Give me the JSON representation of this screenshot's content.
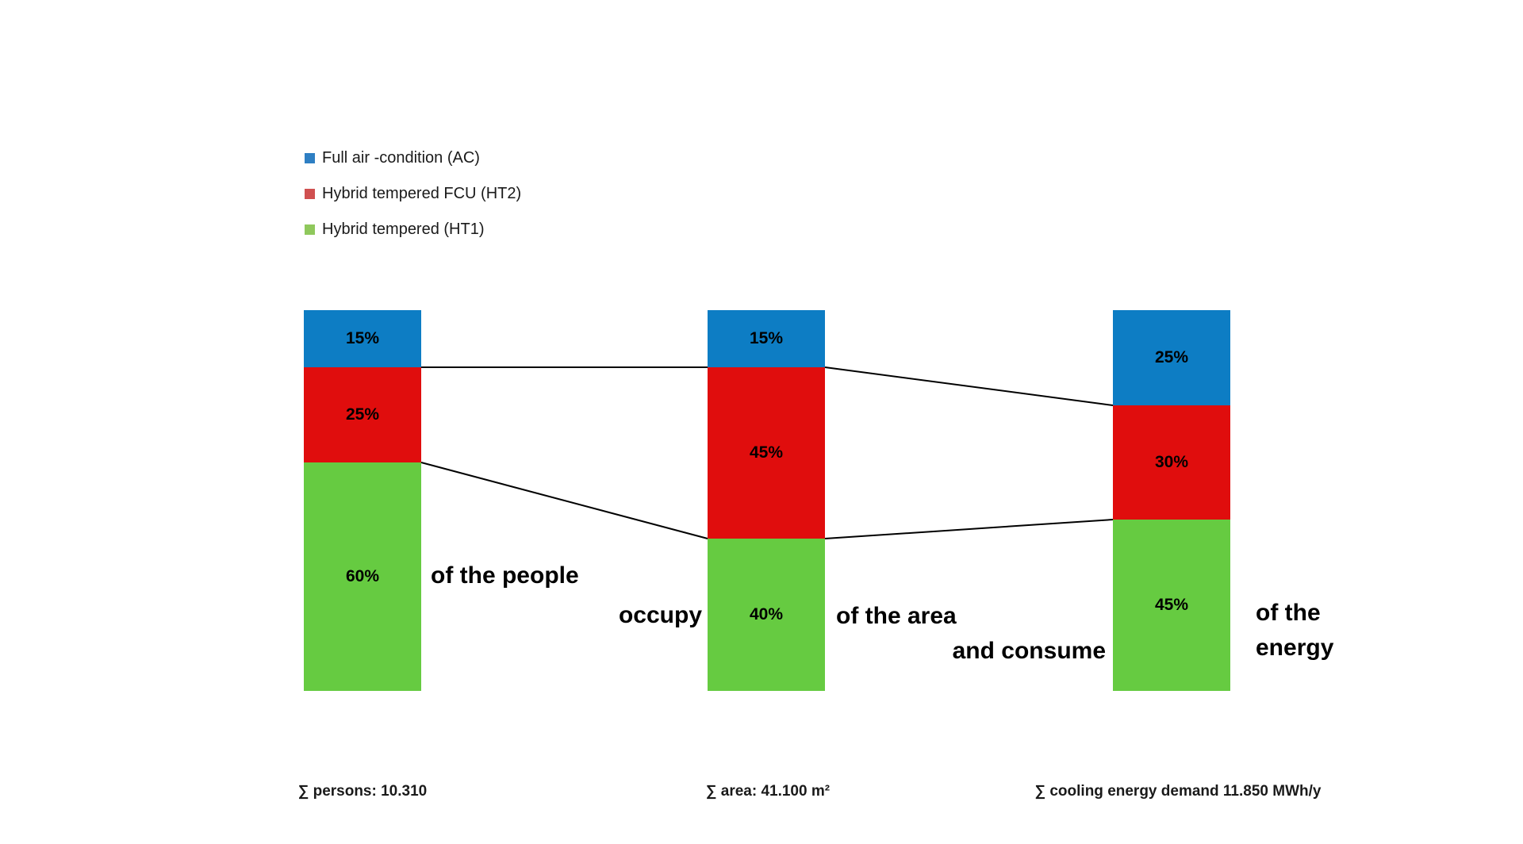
{
  "legend": {
    "items": [
      {
        "label": "Full air -condition (AC)",
        "color": "#2e7fc3"
      },
      {
        "label": "Hybrid tempered FCU (HT2)",
        "color": "#d05050"
      },
      {
        "label": "Hybrid tempered (HT1)",
        "color": "#8fc85c"
      }
    ]
  },
  "chart_data": {
    "type": "bar",
    "subtype": "100%-stacked-columns-with-connector-lines",
    "categories": [
      "people",
      "area",
      "energy"
    ],
    "series": [
      {
        "name": "Full air -condition (AC)",
        "color": "#0d7dc4",
        "values": [
          15,
          15,
          25
        ]
      },
      {
        "name": "Hybrid tempered FCU (HT2)",
        "color": "#e00d0d",
        "values": [
          25,
          45,
          30
        ]
      },
      {
        "name": "Hybrid tempered (HT1)",
        "color": "#66cb41",
        "values": [
          60,
          40,
          45
        ]
      }
    ],
    "stack_order": "top-to-bottom",
    "value_suffix": "%",
    "ylim": [
      0,
      100
    ],
    "grid": false,
    "axes_visible": false,
    "legend_position": "top-left",
    "connector_color": "#000000"
  },
  "annotations": {
    "phrase_people": "of the people",
    "phrase_occupy": "occupy",
    "phrase_area": "of the area",
    "phrase_consume": "and consume",
    "phrase_energy_line1": "of the",
    "phrase_energy_line2": "energy"
  },
  "totals": [
    {
      "label": "∑ persons: 10.310"
    },
    {
      "label": "∑ area: 41.100 m²"
    },
    {
      "label": "∑ cooling energy demand 11.850 MWh/y"
    }
  ]
}
